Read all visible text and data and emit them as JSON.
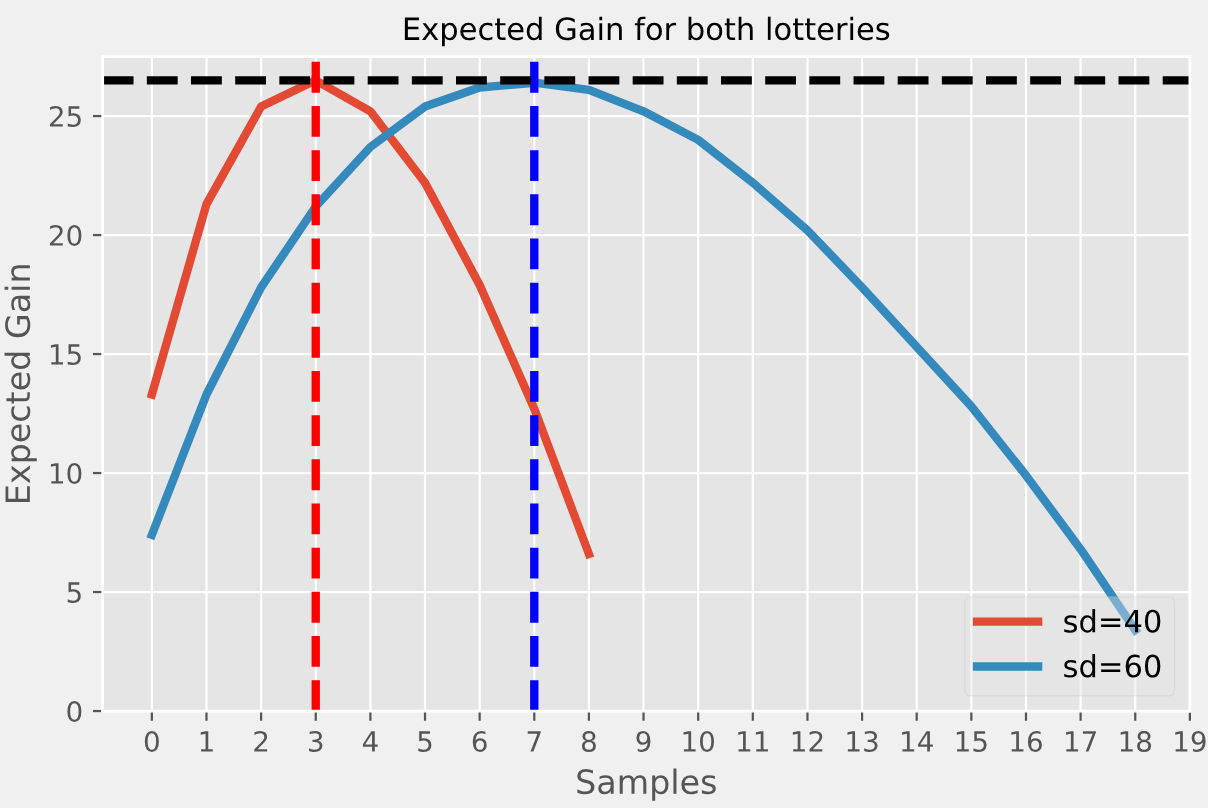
{
  "chart_data": {
    "type": "line",
    "title": "Expected Gain for both lotteries",
    "xlabel": "Samples",
    "ylabel": "Expected Gain",
    "series": [
      {
        "name": "sd=40",
        "color": "#e24a33",
        "x": [
          0,
          1,
          2,
          3,
          4,
          5,
          6,
          7,
          8
        ],
        "values": [
          13.3,
          21.3,
          25.4,
          26.5,
          25.2,
          22.2,
          17.9,
          12.7,
          6.6
        ]
      },
      {
        "name": "sd=60",
        "color": "#348abd",
        "x": [
          0,
          1,
          2,
          3,
          4,
          5,
          6,
          7,
          8,
          9,
          10,
          11,
          12,
          13,
          14,
          15,
          16,
          17,
          18
        ],
        "values": [
          7.4,
          13.3,
          17.8,
          21.2,
          23.7,
          25.4,
          26.2,
          26.4,
          26.1,
          25.2,
          24.0,
          22.2,
          20.2,
          17.8,
          15.3,
          12.8,
          9.9,
          6.8,
          3.4
        ]
      }
    ],
    "ref_lines": [
      {
        "axis": "x",
        "value": 3,
        "color": "#ff0000",
        "line_style": "dashed"
      },
      {
        "axis": "x",
        "value": 7,
        "color": "#0000ff",
        "line_style": "dashed"
      },
      {
        "axis": "y",
        "value": 26.5,
        "color": "#000000",
        "line_style": "dashed"
      }
    ],
    "xlim": [
      -0.9,
      19
    ],
    "ylim": [
      0,
      27.5
    ],
    "xticks": [
      0,
      1,
      2,
      3,
      4,
      5,
      6,
      7,
      8,
      9,
      10,
      11,
      12,
      13,
      14,
      15,
      16,
      17,
      18,
      19
    ],
    "yticks": [
      0,
      5,
      10,
      15,
      20,
      25
    ],
    "grid": true,
    "legend": "lower right",
    "line_style": "solid"
  }
}
